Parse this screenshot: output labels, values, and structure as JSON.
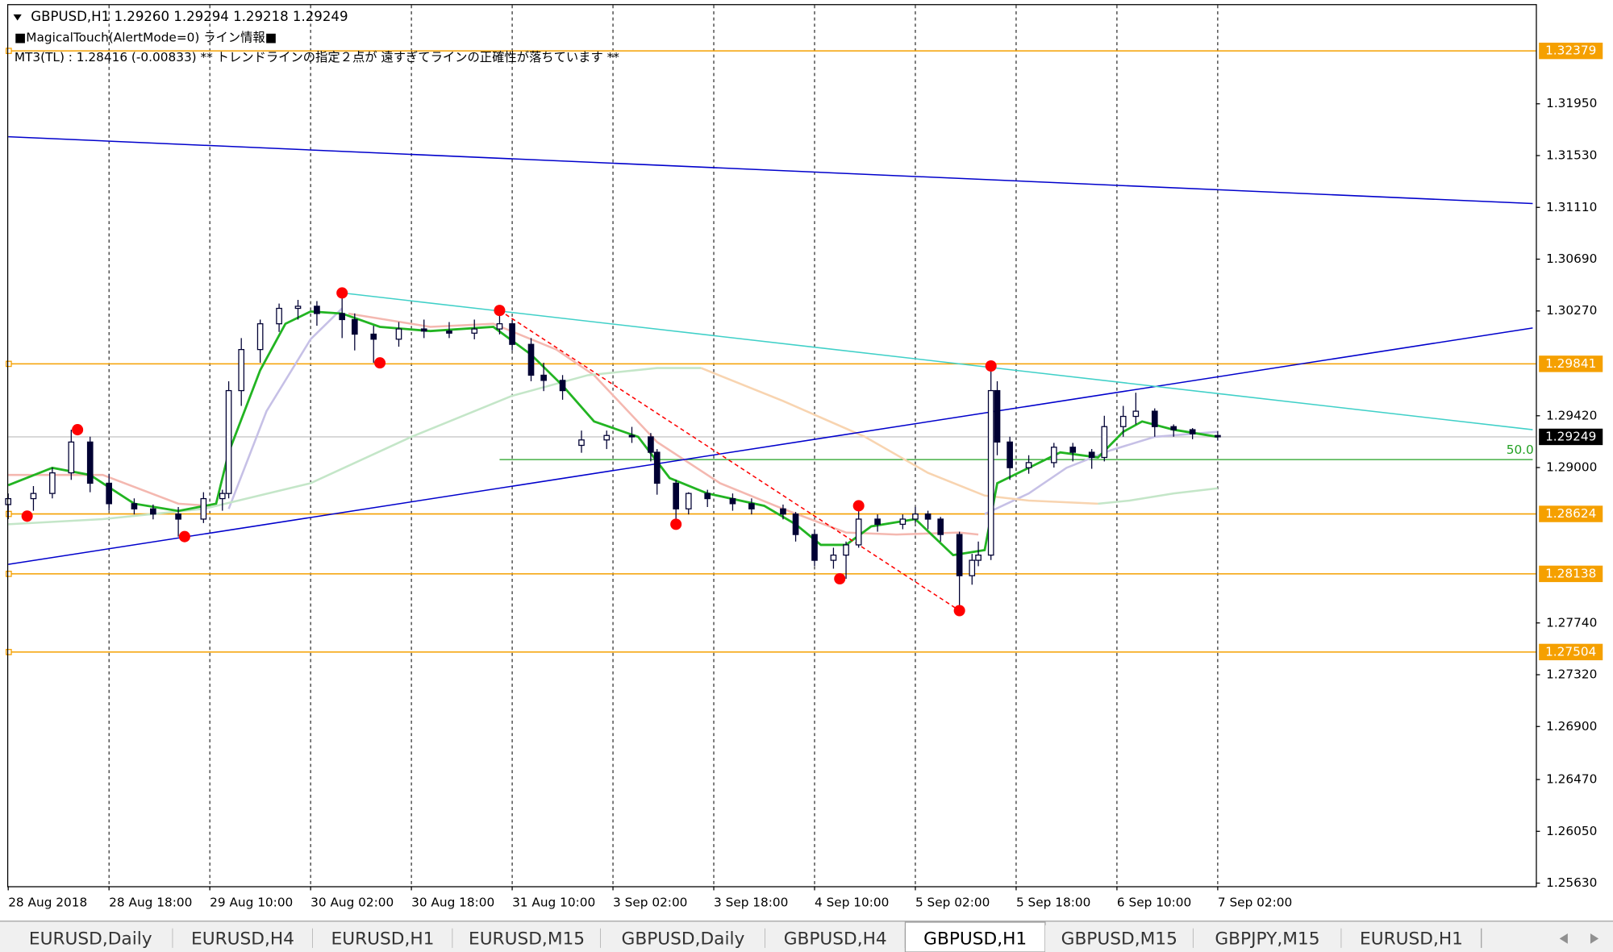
{
  "chart_data": {
    "type": "candlestick",
    "title": "GBPUSD,H1  1.29260 1.29294 1.29218 1.29249",
    "indicator_labels": [
      "■MagicalTouch(AlertMode=0) ライン情報■",
      "MT3(TL) : 1.28416 (-0.00833)   ** トレンドラインの指定２点が 遠すぎてラインの正確性が落ちています **"
    ],
    "candle_color": "#000033",
    "x": [
      0,
      4,
      7,
      10,
      13,
      16,
      20,
      23,
      27,
      31,
      34,
      35,
      37,
      40,
      43,
      46,
      49,
      53,
      55,
      58,
      62,
      66,
      70,
      74,
      78,
      80,
      83,
      85,
      88,
      91,
      95,
      99,
      102,
      103,
      106,
      108,
      111,
      115,
      118,
      123,
      125,
      128,
      131,
      133,
      135,
      138,
      142,
      144,
      146,
      148,
      151,
      153,
      154,
      156,
      157,
      159,
      162,
      166,
      169,
      172,
      174,
      177,
      179,
      182,
      185,
      188,
      192
    ],
    "open": [
      1.287,
      1.28748,
      1.2879,
      1.28957,
      1.29207,
      1.28873,
      1.28707,
      1.28665,
      1.28623,
      1.28582,
      1.28748,
      1.2879,
      1.29624,
      1.29957,
      1.30166,
      1.30291,
      1.30308,
      1.30249,
      1.302,
      1.30082,
      1.30041,
      1.30124,
      1.30107,
      1.3009,
      1.30124,
      1.30166,
      1.29999,
      1.29749,
      1.29707,
      1.2918,
      1.29224,
      1.2926,
      1.29249,
      1.29124,
      1.28873,
      1.28665,
      1.2879,
      1.28748,
      1.28707,
      1.28665,
      1.28623,
      1.28457,
      1.28248,
      1.2829,
      1.28373,
      1.28582,
      1.2854,
      1.28582,
      1.28623,
      1.28582,
      1.28457,
      1.28123,
      1.28248,
      1.2829,
      1.29624,
      1.29207,
      1.28999,
      1.2904,
      1.29165,
      1.29124,
      1.29082,
      1.29332,
      1.29415,
      1.29457,
      1.29332,
      1.29307,
      1.2926
    ],
    "high": [
      1.2879,
      1.2885,
      1.29,
      1.29307,
      1.2925,
      1.2895,
      1.2875,
      1.287,
      1.2868,
      1.288,
      1.2882,
      1.297,
      1.3005,
      1.302,
      1.3033,
      1.3036,
      1.3035,
      1.30416,
      1.3025,
      1.3015,
      1.3018,
      1.302,
      1.3018,
      1.302,
      1.30274,
      1.302,
      1.3005,
      1.2985,
      1.2975,
      1.293,
      1.293,
      1.2933,
      1.2928,
      1.2915,
      1.289,
      1.288,
      1.2882,
      1.2879,
      1.2875,
      1.287,
      1.2864,
      1.285,
      1.2835,
      1.284,
      1.2869,
      1.2862,
      1.2862,
      1.2868,
      1.2865,
      1.286,
      1.2848,
      1.283,
      1.284,
      1.29824,
      1.297,
      1.2925,
      1.291,
      1.292,
      1.292,
      1.2915,
      1.2942,
      1.295,
      1.29607,
      1.2948,
      1.2935,
      1.2932,
      1.29294
    ],
    "low": [
      1.28582,
      1.2865,
      1.2875,
      1.289,
      1.288,
      1.2865,
      1.2862,
      1.2858,
      1.2844,
      1.2855,
      1.2865,
      1.2875,
      1.295,
      1.2985,
      1.301,
      1.302,
      1.3015,
      1.3005,
      1.2995,
      1.29849,
      1.2998,
      1.3005,
      1.3005,
      1.3004,
      1.3008,
      1.2995,
      1.297,
      1.2962,
      1.2955,
      1.2912,
      1.2915,
      1.292,
      1.2905,
      1.2878,
      1.2854,
      1.2862,
      1.2868,
      1.2865,
      1.2862,
      1.2858,
      1.284,
      1.282,
      1.2818,
      1.28098,
      1.2835,
      1.2848,
      1.285,
      1.2855,
      1.285,
      1.284,
      1.2784,
      1.2805,
      1.282,
      1.2825,
      1.291,
      1.289,
      1.2895,
      1.29,
      1.2905,
      1.2899,
      1.2905,
      1.2925,
      1.2935,
      1.2925,
      1.2925,
      1.2923,
      1.29218
    ],
    "close": [
      1.28748,
      1.2879,
      1.28957,
      1.29207,
      1.28873,
      1.28707,
      1.28665,
      1.28623,
      1.28582,
      1.28748,
      1.2879,
      1.29624,
      1.29957,
      1.30166,
      1.30291,
      1.30308,
      1.30249,
      1.302,
      1.30082,
      1.30041,
      1.30124,
      1.30107,
      1.3009,
      1.30124,
      1.30166,
      1.29999,
      1.29749,
      1.29707,
      1.29624,
      1.29224,
      1.2926,
      1.29249,
      1.29124,
      1.28873,
      1.28665,
      1.2879,
      1.28748,
      1.28707,
      1.28665,
      1.28623,
      1.28457,
      1.28248,
      1.2829,
      1.28373,
      1.28582,
      1.2854,
      1.28582,
      1.28623,
      1.28582,
      1.28457,
      1.28123,
      1.28248,
      1.2829,
      1.29624,
      1.29207,
      1.28999,
      1.2904,
      1.29165,
      1.29124,
      1.29082,
      1.29332,
      1.29415,
      1.29457,
      1.29332,
      1.29307,
      1.29274,
      1.29249
    ],
    "overlays": [
      {
        "color": "#f4b8b0",
        "x": [
          0,
          15,
          27,
          32,
          33,
          54,
          67,
          77,
          87,
          93,
          103,
          113,
          123,
          133,
          141,
          151,
          154
        ],
        "values": [
          1.2894,
          1.2894,
          1.28707,
          1.2869,
          null,
          1.30249,
          1.30141,
          1.30166,
          1.29957,
          1.29749,
          1.29207,
          1.28873,
          1.28665,
          1.28473,
          1.28457,
          1.28473,
          1.28457
        ]
      },
      {
        "color": "#c6c0e6",
        "x": [
          35,
          41,
          48,
          53,
          54,
          155,
          162,
          168,
          175,
          182,
          192
        ],
        "values": [
          1.28665,
          1.29457,
          1.30041,
          1.30291,
          null,
          1.28623,
          1.2879,
          1.28998,
          1.2914,
          1.29249,
          1.2929
        ]
      },
      {
        "color": "#c4e6c8",
        "x": [
          0,
          15,
          31,
          48,
          64,
          80,
          92,
          103,
          110
        ],
        "values": [
          1.2854,
          1.28582,
          1.28665,
          1.28873,
          1.29249,
          1.29582,
          1.29749,
          1.29807,
          1.29807
        ]
      },
      {
        "color": "#f8d4b0",
        "x": [
          110,
          123,
          136,
          146,
          155,
          162,
          173
        ],
        "values": [
          1.29807,
          1.2954,
          1.29249,
          1.28957,
          1.28773,
          1.28732,
          1.28707
        ]
      },
      {
        "color": "#c4e6c8",
        "x": [
          173,
          178,
          185,
          192
        ],
        "values": [
          1.28707,
          1.28732,
          1.2879,
          1.28832
        ]
      },
      {
        "color": "#22b422",
        "x": [
          0,
          7,
          13,
          20,
          27,
          33,
          35,
          40,
          44,
          48,
          53,
          59,
          67,
          77,
          83,
          88,
          93,
          100,
          105,
          111,
          120,
          125,
          129,
          133,
          137,
          144,
          150,
          155,
          157,
          162,
          167,
          173,
          177,
          180,
          185,
          192
        ],
        "values": [
          1.28857,
          1.28998,
          1.2894,
          1.28707,
          1.28648,
          1.28707,
          1.29123,
          1.2979,
          1.30166,
          1.30266,
          1.30249,
          1.30141,
          1.30107,
          1.30141,
          1.29916,
          1.29665,
          1.29374,
          1.29249,
          1.28915,
          1.2879,
          1.2869,
          1.2854,
          1.28373,
          1.28373,
          1.28523,
          1.28582,
          1.2829,
          1.28331,
          1.28873,
          1.28998,
          1.29123,
          1.29082,
          1.2929,
          1.29374,
          1.29307,
          1.29249
        ]
      }
    ],
    "trendlines": [
      {
        "color": "#0000cc",
        "dash": false,
        "x": [
          0,
          242
        ],
        "values": [
          1.31683,
          1.31141
        ]
      },
      {
        "color": "#0000cc",
        "dash": false,
        "x": [
          0,
          242
        ],
        "values": [
          1.28215,
          1.30132
        ]
      },
      {
        "color": "#40d0c8",
        "dash": false,
        "x": [
          53,
          242
        ],
        "values": [
          1.30416,
          1.29307
        ]
      },
      {
        "color": "#ff0000",
        "dash": true,
        "x": [
          78,
          151
        ],
        "values": [
          1.30274,
          1.2784
        ]
      }
    ],
    "fib_line": {
      "label": "50.0",
      "color": "#22a022",
      "x": [
        78,
        242
      ],
      "value": 1.29065
    },
    "levels": [
      {
        "value": 1.32379,
        "color": "#f5a000"
      },
      {
        "value": 1.29841,
        "color": "#f5a000"
      },
      {
        "value": 1.28624,
        "color": "#f5a000"
      },
      {
        "value": 1.28138,
        "color": "#f5a000"
      },
      {
        "value": 1.27504,
        "color": "#f5a000"
      }
    ],
    "current_price": {
      "value": 1.29249,
      "color": "#c8c8c8"
    },
    "pivots": {
      "color": "#ff0000",
      "x": [
        3,
        11,
        28,
        53,
        59,
        78,
        106,
        132,
        135,
        151,
        156
      ],
      "values": [
        1.28606,
        1.29307,
        1.2844,
        1.30416,
        1.29849,
        1.30274,
        1.2854,
        1.28098,
        1.2869,
        1.2784,
        1.29824
      ]
    },
    "xlim": [
      0,
      242.5
    ],
    "xticks": [
      {
        "value": 0,
        "label": "28 Aug 2018"
      },
      {
        "value": 16,
        "label": "28 Aug 18:00"
      },
      {
        "value": 32,
        "label": "29 Aug 10:00"
      },
      {
        "value": 48,
        "label": "30 Aug 02:00"
      },
      {
        "value": 64,
        "label": "30 Aug 18:00"
      },
      {
        "value": 80,
        "label": "31 Aug 10:00"
      },
      {
        "value": 96,
        "label": "3 Sep 02:00"
      },
      {
        "value": 112,
        "label": "3 Sep 18:00"
      },
      {
        "value": 128,
        "label": "4 Sep 10:00"
      },
      {
        "value": 144,
        "label": "5 Sep 02:00"
      },
      {
        "value": 160,
        "label": "5 Sep 18:00"
      },
      {
        "value": 176,
        "label": "6 Sep 10:00"
      },
      {
        "value": 192,
        "label": "7 Sep 02:00"
      }
    ],
    "xgrid": true,
    "ylim": [
      1.25605,
      1.3275
    ],
    "yticks": [
      {
        "value": 1.3195,
        "label": "1.31950"
      },
      {
        "value": 1.3153,
        "label": "1.31530"
      },
      {
        "value": 1.3111,
        "label": "1.31110"
      },
      {
        "value": 1.3069,
        "label": "1.30690"
      },
      {
        "value": 1.3027,
        "label": "1.30270"
      },
      {
        "value": 1.2942,
        "label": "1.29420"
      },
      {
        "value": 1.29,
        "label": "1.29000"
      },
      {
        "value": 1.2774,
        "label": "1.27740"
      },
      {
        "value": 1.2732,
        "label": "1.27320"
      },
      {
        "value": 1.269,
        "label": "1.26900"
      },
      {
        "value": 1.2647,
        "label": "1.26470"
      },
      {
        "value": 1.2605,
        "label": "1.26050"
      },
      {
        "value": 1.2563,
        "label": "1.25630"
      }
    ]
  },
  "tabs": [
    "EURUSD,Daily",
    "EURUSD,H4",
    "EURUSD,H1",
    "EURUSD,M15",
    "GBPUSD,Daily",
    "GBPUSD,H4",
    "GBPUSD,H1",
    "GBPUSD,M15",
    "GBPJPY,M15",
    "EURUSD,H1"
  ],
  "active_tab": 6
}
